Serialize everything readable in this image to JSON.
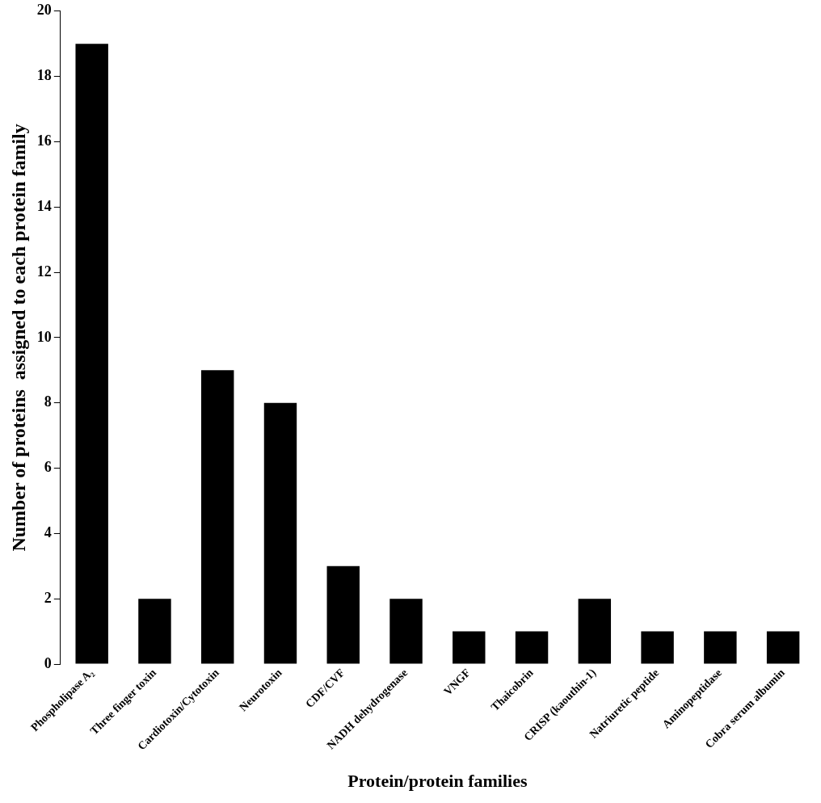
{
  "chart_data": {
    "type": "bar",
    "xlabel": "Protein/protein families",
    "ylabel": "Number of proteins  assigned to each protein family",
    "categories": [
      "Phospholipase A₂",
      "Three finger toxin",
      "Cardiotoxin/Cytotoxin",
      "Neurotoxin",
      "CDF/CVF",
      "NADH dehydrogenase",
      "VNGF",
      "Thaicobrin",
      "CRISP (kaouthin-1)",
      "Natriuretic peptide",
      "Aminopeptidase",
      "Cobra serum albumin"
    ],
    "values": [
      19,
      2,
      9,
      8,
      3,
      2,
      1,
      1,
      2,
      1,
      1,
      1
    ],
    "color": "#000000",
    "ylim": [
      0,
      20
    ],
    "yticks": [
      0,
      2,
      4,
      6,
      8,
      10,
      12,
      14,
      16,
      18,
      20
    ]
  }
}
